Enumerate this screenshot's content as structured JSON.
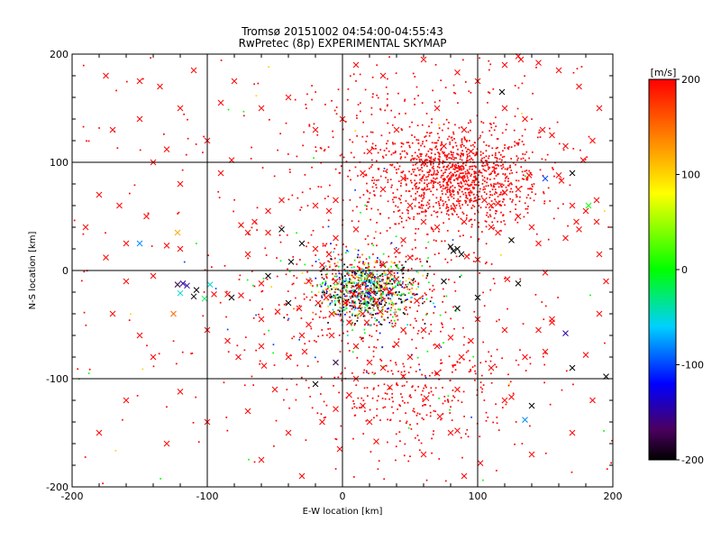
{
  "chart_data": {
    "type": "scatter",
    "title": "Tromsø 20151002 04:54:00-04:55:43",
    "subtitle": "RwPretec (8p) EXPERIMENTAL SKYMAP",
    "xlabel": "E-W location [km]",
    "ylabel": "N-S location [km]",
    "xlim": [
      -200,
      200
    ],
    "ylim": [
      -200,
      200
    ],
    "xticks": [
      -200,
      -100,
      0,
      100,
      200
    ],
    "yticks": [
      -200,
      -100,
      0,
      100,
      200
    ],
    "grid": true,
    "colorbar": {
      "label": "[m/s]",
      "range": [
        -200,
        200
      ],
      "ticks": [
        200,
        100,
        0,
        -100,
        -200
      ],
      "colors": [
        "#000000",
        "#800080",
        "#0000ff",
        "#00ffff",
        "#00ff00",
        "#ffff00",
        "#ff8000",
        "#ff0000"
      ]
    },
    "series": [
      {
        "marker": "x",
        "points": [
          [
            -170,
            130
          ],
          [
            -150,
            175
          ],
          [
            -135,
            170
          ],
          [
            -130,
            112
          ],
          [
            -90,
            155
          ],
          [
            -82,
            102
          ],
          [
            -160,
            25
          ],
          [
            -175,
            12
          ],
          [
            -130,
            23
          ],
          [
            -120,
            20
          ],
          [
            -122,
            35
          ],
          [
            -150,
            25
          ],
          [
            -118,
            -12
          ],
          [
            -122,
            -13
          ],
          [
            -108,
            -18
          ],
          [
            -120,
            -21
          ],
          [
            -102,
            -26
          ],
          [
            -125,
            -40
          ],
          [
            -120,
            -112
          ],
          [
            -82,
            -25
          ],
          [
            -75,
            -23
          ],
          [
            -60,
            -45
          ],
          [
            -40,
            -30
          ],
          [
            -25,
            -50
          ],
          [
            -48,
            -38
          ],
          [
            -77,
            -80
          ],
          [
            -58,
            -88
          ],
          [
            -32,
            -35
          ],
          [
            -38,
            8
          ],
          [
            -28,
            -75
          ],
          [
            -5,
            -85
          ],
          [
            -20,
            -105
          ],
          [
            -15,
            -140
          ],
          [
            -2,
            -165
          ],
          [
            -5,
            -128
          ],
          [
            10,
            -100
          ],
          [
            5,
            -115
          ],
          [
            15,
            -125
          ],
          [
            20,
            -140
          ],
          [
            25,
            -158
          ],
          [
            35,
            -108
          ],
          [
            45,
            -98
          ],
          [
            62,
            -118
          ],
          [
            72,
            -135
          ],
          [
            80,
            -150
          ],
          [
            85,
            -148
          ],
          [
            70,
            -95
          ],
          [
            85,
            -110
          ],
          [
            88,
            -80
          ],
          [
            125,
            -117
          ],
          [
            120,
            -120
          ],
          [
            135,
            -138
          ],
          [
            102,
            -178
          ],
          [
            80,
            -62
          ],
          [
            60,
            -55
          ],
          [
            40,
            -68
          ],
          [
            55,
            -28
          ],
          [
            75,
            -10
          ],
          [
            85,
            -35
          ],
          [
            100,
            -25
          ],
          [
            130,
            -12
          ],
          [
            122,
            -8
          ],
          [
            145,
            -55
          ],
          [
            155,
            -45
          ],
          [
            125,
            28
          ],
          [
            115,
            35
          ],
          [
            100,
            10
          ],
          [
            85,
            20
          ],
          [
            80,
            22
          ],
          [
            82,
            18
          ],
          [
            88,
            15
          ],
          [
            92,
            13
          ],
          [
            110,
            60
          ],
          [
            105,
            65
          ],
          [
            115,
            62
          ],
          [
            120,
            72
          ],
          [
            130,
            75
          ],
          [
            138,
            88
          ],
          [
            150,
            85
          ],
          [
            160,
            88
          ],
          [
            162,
            83
          ],
          [
            170,
            60
          ],
          [
            180,
            55
          ],
          [
            188,
            65
          ],
          [
            188,
            45
          ],
          [
            173,
            45
          ],
          [
            178,
            102
          ],
          [
            165,
            115
          ],
          [
            155,
            125
          ],
          [
            148,
            130
          ],
          [
            135,
            140
          ],
          [
            120,
            150
          ],
          [
            118,
            165
          ],
          [
            100,
            175
          ],
          [
            85,
            183
          ],
          [
            60,
            195
          ],
          [
            30,
            180
          ],
          [
            10,
            190
          ],
          [
            120,
            190
          ],
          [
            132,
            195
          ],
          [
            145,
            192
          ],
          [
            130,
            198
          ],
          [
            95,
            110
          ],
          [
            75,
            115
          ],
          [
            60,
            100
          ],
          [
            45,
            85
          ],
          [
            30,
            75
          ],
          [
            15,
            90
          ],
          [
            -5,
            65
          ],
          [
            -10,
            55
          ],
          [
            -20,
            60
          ],
          [
            -45,
            65
          ],
          [
            -55,
            55
          ],
          [
            -65,
            45
          ],
          [
            -75,
            42
          ],
          [
            -70,
            35
          ],
          [
            -55,
            35
          ],
          [
            -45,
            38
          ],
          [
            -30,
            25
          ],
          [
            -20,
            20
          ],
          [
            -10,
            15
          ],
          [
            -5,
            30
          ],
          [
            10,
            38
          ],
          [
            -15,
            5
          ],
          [
            -25,
            -10
          ],
          [
            -12,
            -25
          ],
          [
            -8,
            -40
          ],
          [
            5,
            -48
          ],
          [
            15,
            -40
          ],
          [
            25,
            -30
          ],
          [
            35,
            -20
          ],
          [
            40,
            -8
          ],
          [
            30,
            5
          ],
          [
            -60,
            -12
          ],
          [
            -85,
            -22
          ],
          [
            -95,
            -22
          ],
          [
            -70,
            15
          ],
          [
            -55,
            -5
          ],
          [
            -110,
            -24
          ],
          [
            -98,
            -13
          ],
          [
            -115,
            -14
          ],
          [
            150,
            -2
          ],
          [
            155,
            -48
          ],
          [
            165,
            -58
          ],
          [
            180,
            -78
          ],
          [
            170,
            -90
          ],
          [
            195,
            -98
          ],
          [
            140,
            -125
          ],
          [
            182,
            60
          ],
          [
            170,
            90
          ],
          [
            40,
            18
          ],
          [
            50,
            12
          ],
          [
            45,
            28
          ],
          [
            35,
            -2
          ],
          [
            20,
            -5
          ],
          [
            12,
            -15
          ],
          [
            8,
            -22
          ],
          [
            2,
            -30
          ],
          [
            18,
            -48
          ],
          [
            28,
            -38
          ],
          [
            -5,
            -10
          ],
          [
            -18,
            -30
          ],
          [
            22,
            -20
          ],
          [
            60,
            45
          ],
          [
            70,
            40
          ],
          [
            50,
            60
          ],
          [
            90,
            45
          ],
          [
            110,
            40
          ],
          [
            130,
            50
          ],
          [
            140,
            40
          ],
          [
            145,
            25
          ],
          [
            165,
            30
          ],
          [
            175,
            38
          ],
          [
            190,
            15
          ],
          [
            100,
            -45
          ],
          [
            120,
            -55
          ],
          [
            135,
            -80
          ],
          [
            150,
            -75
          ],
          [
            110,
            -90
          ],
          [
            95,
            -65
          ],
          [
            70,
            -70
          ],
          [
            45,
            -55
          ],
          [
            50,
            -80
          ],
          [
            30,
            -90
          ],
          [
            20,
            -85
          ],
          [
            10,
            -70
          ],
          [
            -8,
            -60
          ],
          [
            -30,
            -60
          ],
          [
            -40,
            -80
          ],
          [
            -60,
            -70
          ],
          [
            -85,
            -65
          ],
          [
            -100,
            -55
          ],
          [
            -140,
            -5
          ],
          [
            -160,
            -10
          ],
          [
            -145,
            50
          ],
          [
            -165,
            60
          ],
          [
            -180,
            70
          ],
          [
            -190,
            40
          ],
          [
            -170,
            -40
          ],
          [
            -150,
            -60
          ],
          [
            -140,
            -80
          ],
          [
            -160,
            -120
          ],
          [
            -180,
            -150
          ],
          [
            -130,
            -160
          ],
          [
            -100,
            -140
          ],
          [
            -70,
            -130
          ],
          [
            -50,
            -110
          ],
          [
            -40,
            -150
          ],
          [
            -60,
            -175
          ],
          [
            -30,
            -190
          ],
          [
            60,
            -170
          ],
          [
            90,
            -190
          ],
          [
            140,
            -170
          ],
          [
            170,
            -150
          ],
          [
            185,
            -120
          ],
          [
            190,
            -40
          ],
          [
            195,
            -10
          ],
          [
            185,
            120
          ],
          [
            190,
            150
          ],
          [
            175,
            170
          ],
          [
            160,
            185
          ],
          [
            -120,
            150
          ],
          [
            -150,
            140
          ],
          [
            -175,
            180
          ],
          [
            -110,
            185
          ],
          [
            -80,
            175
          ],
          [
            -60,
            150
          ],
          [
            -40,
            160
          ],
          [
            -20,
            130
          ],
          [
            0,
            140
          ],
          [
            20,
            110
          ],
          [
            40,
            130
          ],
          [
            70,
            150
          ],
          [
            90,
            130
          ],
          [
            -100,
            120
          ],
          [
            -140,
            100
          ],
          [
            -120,
            80
          ],
          [
            -90,
            90
          ]
        ],
        "values": [
          200,
          200,
          200,
          200,
          200,
          200,
          200,
          200,
          200,
          200,
          120,
          -80,
          -150,
          -180,
          -200,
          -50,
          -20,
          150,
          200,
          -200,
          200,
          200,
          -200,
          200,
          200,
          200,
          200,
          200,
          -200,
          200,
          -180,
          -200,
          200,
          200,
          200,
          200,
          200,
          200,
          200,
          200,
          200,
          200,
          200,
          200,
          200,
          200,
          200,
          200,
          200,
          200,
          200,
          -80,
          200,
          200,
          200,
          200,
          200,
          -200,
          -200,
          -200,
          -200,
          200,
          200,
          200,
          -200,
          200,
          200,
          -200,
          -200,
          -200,
          -200,
          200,
          200,
          200,
          200,
          200,
          200,
          200,
          -100,
          200,
          200,
          200,
          200,
          200,
          200,
          200,
          200,
          200,
          200,
          200,
          200,
          200,
          -200,
          200,
          200,
          200,
          200,
          200,
          200,
          200,
          200,
          200,
          200,
          200,
          200,
          200,
          200,
          200,
          200,
          200,
          200,
          200,
          200,
          200,
          200,
          200,
          200,
          -200,
          -200,
          200,
          200,
          200,
          200,
          200,
          200,
          200,
          200,
          200,
          200,
          200,
          200,
          200,
          200,
          200,
          200,
          200,
          200,
          -200,
          -200,
          -50,
          -150,
          200,
          200,
          -150,
          200,
          -200,
          -200,
          -200,
          0,
          -200,
          200,
          200,
          200,
          200,
          200,
          200,
          200,
          200,
          200,
          200,
          200,
          200,
          200,
          200,
          200,
          200,
          200,
          200,
          200,
          200,
          200,
          200,
          200,
          200,
          200,
          200,
          200,
          200,
          200,
          200,
          200,
          200,
          200,
          200,
          200,
          200,
          200,
          200,
          200,
          200,
          200,
          200,
          200,
          200,
          200,
          200,
          200,
          200,
          200,
          200,
          200,
          200,
          200,
          200,
          200,
          200,
          200,
          200,
          200,
          200,
          200,
          200,
          200,
          200,
          200,
          200,
          200,
          200,
          200,
          200,
          200,
          200,
          200,
          200,
          200,
          200,
          200,
          200,
          200,
          200,
          200,
          200,
          200,
          200,
          200,
          200,
          200,
          200,
          200,
          200,
          200,
          200,
          200,
          200,
          200,
          200,
          200,
          200,
          200,
          200,
          200
        ]
      }
    ]
  }
}
